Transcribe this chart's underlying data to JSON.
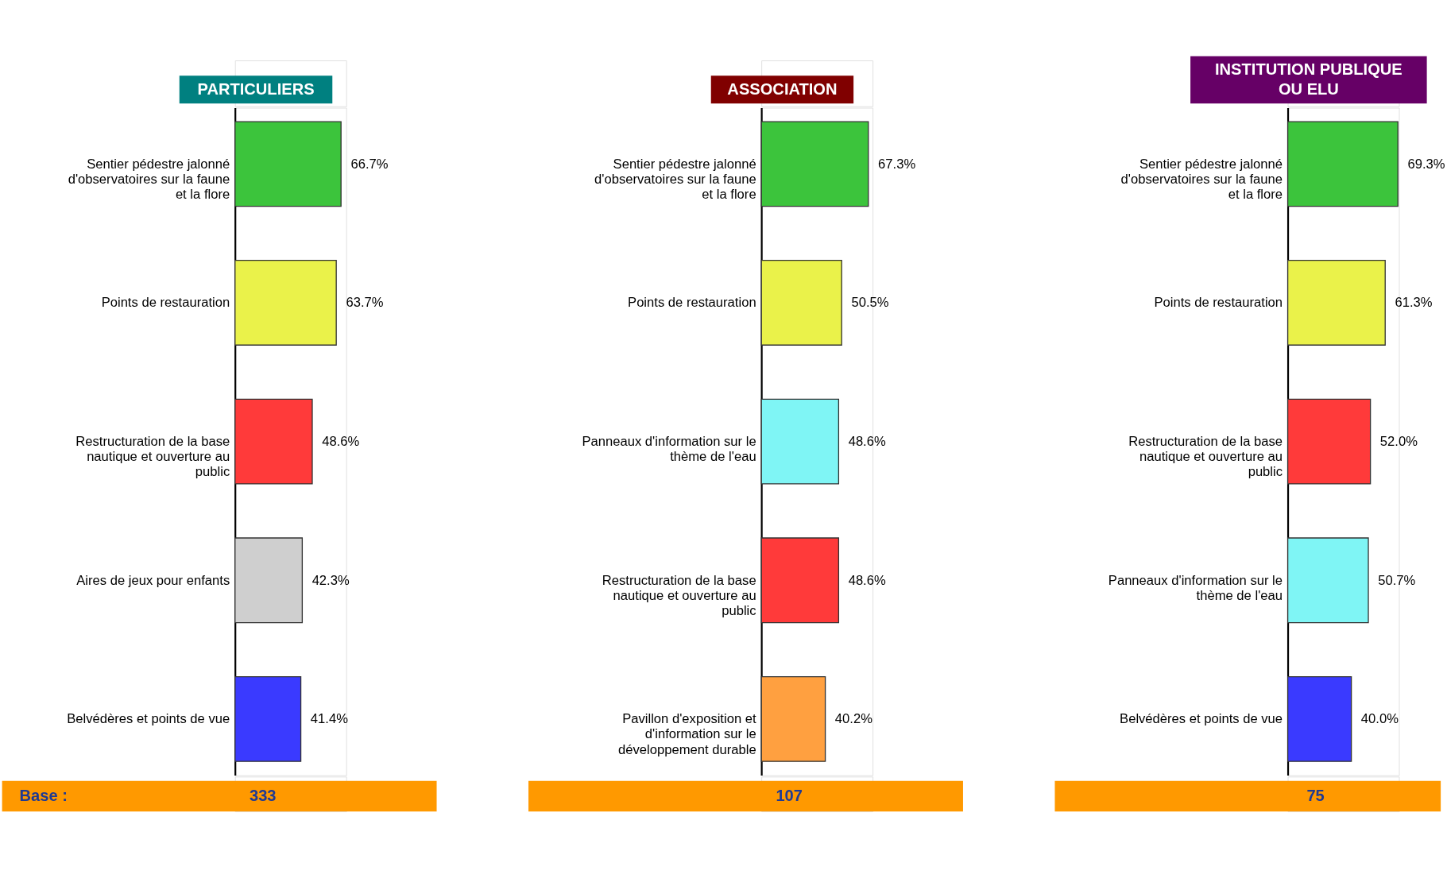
{
  "chart_data": [
    {
      "type": "bar",
      "orientation": "horizontal",
      "title": "PARTICULIERS",
      "tick_labels": "y",
      "categories": [
        "Sentier pédestre jalonné d'observatoires sur la faune et la flore",
        "Points de restauration",
        "Restructuration de la base nautique et ouverture au public",
        "Aires de jeux pour enfants",
        "Belvédères et points de vue"
      ],
      "values": [
        66.7,
        63.7,
        48.6,
        42.3,
        41.4
      ],
      "value_labels": [
        "66.7%",
        "63.7%",
        "48.6%",
        "42.3%",
        "41.4%"
      ],
      "colors": [
        "#3cc43c",
        "#eaf24a",
        "#ff3a3a",
        "#cfcfcf",
        "#3a3aff"
      ],
      "annotations": [
        "Base :",
        "333"
      ]
    },
    {
      "type": "bar",
      "orientation": "horizontal",
      "title": "ASSOCIATION",
      "tick_labels": "y",
      "categories": [
        "Sentier pédestre jalonné d'observatoires sur la faune et la flore",
        "Points de restauration",
        "Panneaux d'information sur le thème de l'eau",
        "Restructuration de la base nautique et ouverture au public",
        "Pavillon d'exposition et d'information sur le développement durable"
      ],
      "values": [
        67.3,
        50.5,
        48.6,
        48.6,
        40.2
      ],
      "value_labels": [
        "67.3%",
        "50.5%",
        "48.6%",
        "48.6%",
        "40.2%"
      ],
      "colors": [
        "#3cc43c",
        "#eaf24a",
        "#7ff5f5",
        "#ff3a3a",
        "#ffa040"
      ],
      "annotations": [
        "107"
      ]
    },
    {
      "type": "bar",
      "orientation": "horizontal",
      "title": "INSTITUTION PUBLIQUE OU ELU",
      "tick_labels": "y",
      "categories": [
        "Sentier pédestre jalonné d'observatoires sur la faune et la flore",
        "Points de restauration",
        "Restructuration de la base nautique et ouverture au public",
        "Panneaux d'information sur le thème de l'eau",
        "Belvédères et points de vue"
      ],
      "values": [
        69.3,
        61.3,
        52.0,
        50.7,
        40.0
      ],
      "value_labels": [
        "69.3%",
        "61.3%",
        "52.0%",
        "50.7%",
        "40.0%"
      ],
      "colors": [
        "#3cc43c",
        "#eaf24a",
        "#ff3a3a",
        "#7ff5f5",
        "#3a3aff"
      ],
      "annotations": [
        "75"
      ]
    }
  ]
}
